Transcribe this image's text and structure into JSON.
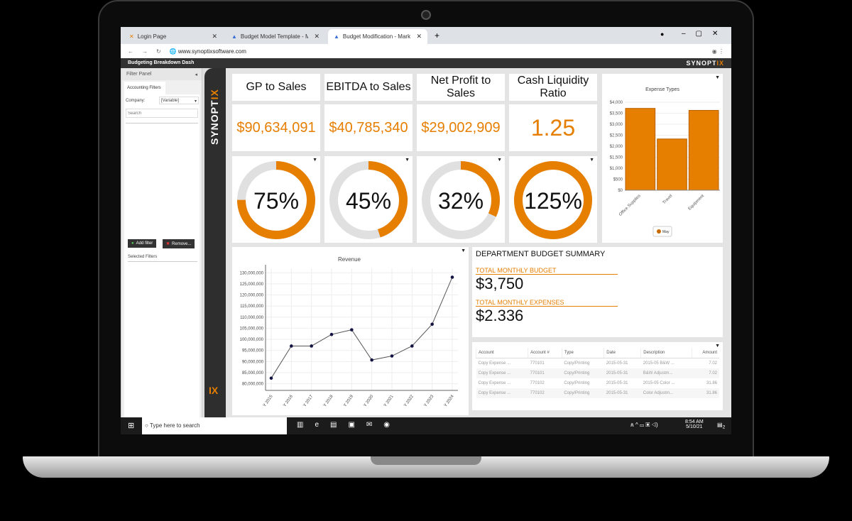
{
  "browser": {
    "tabs": [
      {
        "label": "Login Page"
      },
      {
        "label": "Budget Model Template - Marke"
      },
      {
        "label": "Budget Modification - Marketing"
      }
    ],
    "url": "www.synoptixsoftware.com"
  },
  "app": {
    "title": "Budgeting Breakdown Dash",
    "brand": "SYNOPT",
    "brand_accent": "IX"
  },
  "filter": {
    "title": "Filter Panel",
    "tab": "Accounting Filters",
    "company_label": "Company:",
    "company_value": "[Variable]",
    "search_placeholder": "Search",
    "add_filter": "Add filter",
    "remove": "Remove...",
    "selected_filters": "Selected Filters"
  },
  "kpis": [
    {
      "title": "GP to Sales",
      "value": "$90,634,091",
      "pct": 75,
      "pct_label": "75%"
    },
    {
      "title": "EBITDA to Sales",
      "value": "$40,785,340",
      "pct": 45,
      "pct_label": "45%"
    },
    {
      "title": "Net Profit to Sales",
      "value": "$29,002,909",
      "pct": 32,
      "pct_label": "32%"
    },
    {
      "title": "Cash Liquidity Ratio",
      "value": "1.25",
      "pct": 125,
      "pct_label": "125%"
    }
  ],
  "colors": {
    "accent": "#e67e00",
    "track": "#e0e0e0"
  },
  "summary": {
    "title": "DEPARTMENT BUDGET SUMMARY",
    "budget_label": "TOTAL MONTHLY BUDGET",
    "budget_value": "$3,750",
    "expenses_label": "TOTAL MONTHLY EXPENSES",
    "expenses_value": "$2.336"
  },
  "table": {
    "headers": [
      "Account",
      "Account #",
      "Type",
      "Date",
      "Description",
      "Amount"
    ],
    "rows": [
      [
        "Copy Expense ...",
        "770101",
        "Copy/Printing",
        "2015-05-31",
        "2015-05 B&W ...",
        "7.02"
      ],
      [
        "Copy Expense ...",
        "770101",
        "Copy/Printing",
        "2015-05-31",
        "B&W Adjustm...",
        "7.02"
      ],
      [
        "Copy Expense ...",
        "770102",
        "Copy/Printing",
        "2015-05-31",
        "2015-05 Color ...",
        "31.86"
      ],
      [
        "Copy Expense ...",
        "770102",
        "Copy/Printing",
        "2015-05-31",
        "Color Adjustm...",
        "31.86"
      ]
    ]
  },
  "taskbar": {
    "search": "Type here to search",
    "time": "8:54 AM",
    "date": "5/10/21",
    "notifications": "2"
  },
  "chart_data": [
    {
      "type": "bar",
      "title": "Expense Types",
      "categories": [
        "Office Supplies",
        "Travel",
        "Equipment"
      ],
      "values": [
        3720,
        2330,
        3630
      ],
      "ylim": [
        0,
        4000
      ],
      "yticks": [
        "$0",
        "$500",
        "$1,000",
        "$1,500",
        "$2,000",
        "$2,500",
        "$3,000",
        "$3,500",
        "$4,000"
      ],
      "legend": [
        "May"
      ]
    },
    {
      "type": "line",
      "title": "Revenue",
      "categories": [
        "Y 2015",
        "Y 2016",
        "Y 2017",
        "Y 2018",
        "Y 2019",
        "Y 2020",
        "Y 2021",
        "Y 2022",
        "Y 2023",
        "Y 2024"
      ],
      "values": [
        82500000,
        97000000,
        97000000,
        102200000,
        104300000,
        90700000,
        92500000,
        97000000,
        106800000,
        128000000
      ],
      "ylim": [
        77000000,
        132000000
      ],
      "yticks": [
        "80,000,000",
        "85,000,000",
        "90,000,000",
        "95,000,000",
        "100,000,000",
        "105,000,000",
        "110,000,000",
        "115,000,000",
        "120,000,000",
        "125,000,000",
        "130,000,000"
      ]
    }
  ]
}
